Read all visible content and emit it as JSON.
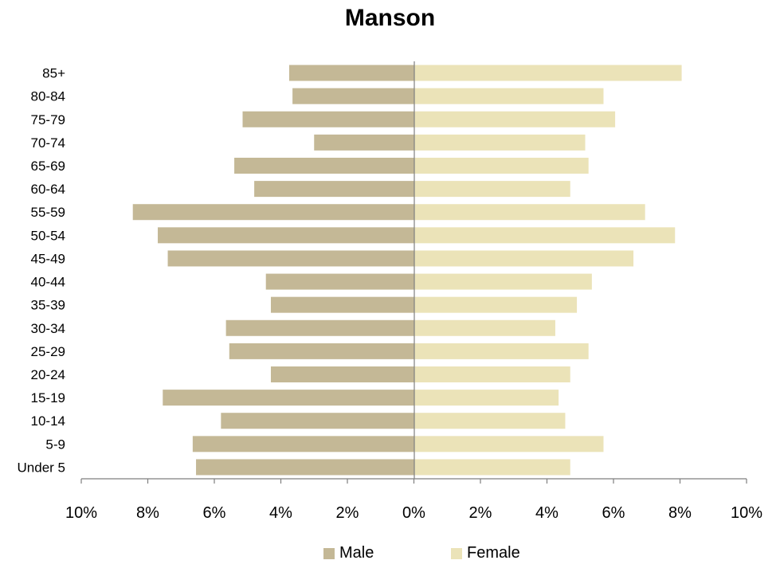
{
  "chart_data": {
    "type": "bar",
    "orientation": "horizontal",
    "title": "Manson",
    "xlabel": "",
    "ylabel": "",
    "xlim": [
      -10,
      10
    ],
    "x_tick_labels": [
      "10%",
      "8%",
      "6%",
      "4%",
      "2%",
      "0%",
      "2%",
      "4%",
      "6%",
      "8%",
      "10%"
    ],
    "categories": [
      "Under 5",
      "5-9",
      "10-14",
      "15-19",
      "20-24",
      "25-29",
      "30-34",
      "35-39",
      "40-44",
      "45-49",
      "50-54",
      "55-59",
      "60-64",
      "65-69",
      "70-74",
      "75-79",
      "80-84",
      "85+"
    ],
    "series": [
      {
        "name": "Male",
        "color": "#c4b896",
        "values": [
          6.55,
          6.65,
          5.8,
          7.55,
          4.3,
          5.55,
          5.65,
          4.3,
          4.45,
          7.4,
          7.7,
          8.45,
          4.8,
          5.4,
          3.0,
          5.15,
          3.65,
          3.75
        ]
      },
      {
        "name": "Female",
        "color": "#ebe3b8",
        "values": [
          4.7,
          5.7,
          4.55,
          4.35,
          4.7,
          5.25,
          4.25,
          4.9,
          5.35,
          6.6,
          7.85,
          6.95,
          4.7,
          5.25,
          5.15,
          6.05,
          5.7,
          8.05
        ]
      }
    ],
    "grid": false,
    "legend_position": "bottom"
  }
}
